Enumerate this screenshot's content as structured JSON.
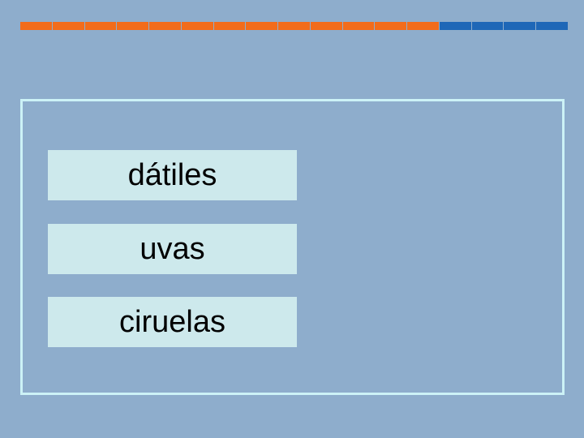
{
  "progress": {
    "done": 13,
    "total": 17
  },
  "words": [
    "dátiles",
    "uvas",
    "ciruelas"
  ]
}
